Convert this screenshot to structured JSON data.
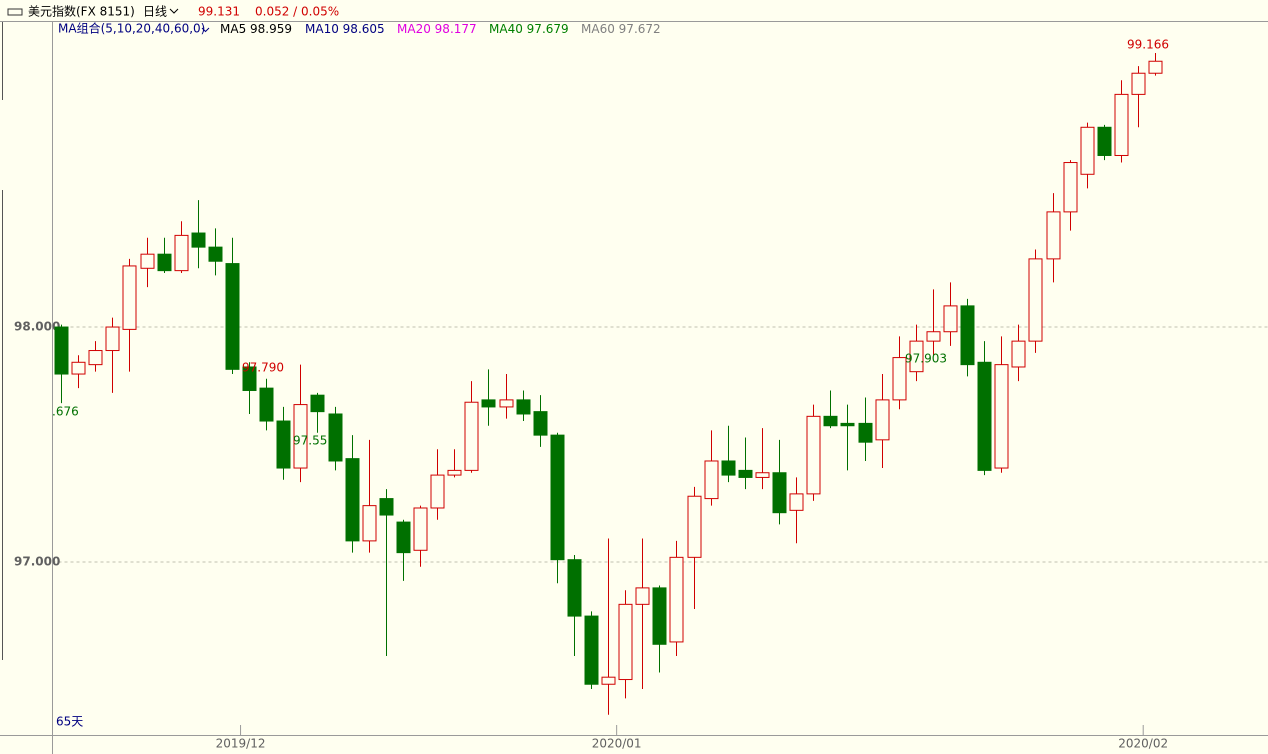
{
  "header": {
    "symbol": "美元指数(FX 8151)",
    "period": "日线",
    "price": 99.131,
    "change": "0.052 / 0.05%"
  },
  "chart_data": {
    "type": "candlestick",
    "ma_title": "MA组合(5,10,20,40,60,0)",
    "ma_legend": [
      {
        "name": "MA5",
        "value": 98.959,
        "color": "#000000"
      },
      {
        "name": "MA10",
        "value": 98.605,
        "color": "#000080"
      },
      {
        "name": "MA20",
        "value": 98.177,
        "color": "#e000e0"
      },
      {
        "name": "MA40",
        "value": 97.679,
        "color": "#008000"
      },
      {
        "name": "MA60",
        "value": 97.672,
        "color": "#808080"
      }
    ],
    "up_color": "#d00000",
    "down_color": "#007000",
    "open": [
      98.0,
      97.8,
      97.84,
      97.9,
      97.99,
      98.25,
      98.31,
      98.24,
      98.4,
      98.34,
      98.27,
      97.83,
      97.74,
      97.6,
      97.4,
      97.71,
      97.63,
      97.44,
      97.09,
      97.27,
      97.17,
      97.05,
      97.23,
      97.37,
      97.39,
      97.69,
      97.66,
      97.69,
      97.64,
      97.54,
      97.01,
      96.77,
      96.48,
      96.5,
      96.82,
      96.89,
      96.66,
      97.02,
      97.27,
      97.43,
      97.39,
      97.36,
      97.38,
      97.22,
      97.29,
      97.62,
      97.59,
      97.59,
      97.52,
      97.69,
      97.81,
      97.94,
      97.98,
      98.09,
      97.85,
      97.4,
      97.83,
      97.94,
      98.29,
      98.49,
      98.65,
      98.85,
      98.73,
      98.99,
      99.08
    ],
    "high": [
      98.01,
      97.88,
      97.94,
      98.04,
      98.29,
      98.38,
      98.38,
      98.45,
      98.54,
      98.42,
      98.38,
      97.85,
      97.78,
      97.66,
      97.84,
      97.72,
      97.66,
      97.54,
      97.52,
      97.31,
      97.18,
      97.24,
      97.48,
      97.48,
      97.77,
      97.82,
      97.8,
      97.73,
      97.71,
      97.55,
      97.03,
      96.79,
      97.1,
      96.88,
      97.1,
      96.9,
      97.09,
      97.32,
      97.56,
      97.58,
      97.53,
      97.57,
      97.52,
      97.36,
      97.67,
      97.73,
      97.67,
      97.7,
      97.8,
      97.96,
      98.01,
      98.16,
      98.19,
      98.12,
      97.94,
      97.96,
      98.01,
      98.33,
      98.57,
      98.71,
      98.87,
      98.86,
      99.05,
      99.11,
      99.166
    ],
    "low": [
      97.676,
      97.74,
      97.81,
      97.72,
      97.81,
      98.17,
      98.23,
      98.23,
      98.25,
      98.22,
      97.8,
      97.63,
      97.56,
      97.35,
      97.34,
      97.55,
      97.39,
      97.04,
      97.04,
      96.6,
      96.92,
      96.98,
      97.18,
      97.36,
      97.38,
      97.58,
      97.61,
      97.6,
      97.49,
      96.91,
      96.6,
      96.46,
      96.35,
      96.42,
      96.46,
      96.53,
      96.6,
      96.8,
      97.24,
      97.34,
      97.31,
      97.31,
      97.16,
      97.08,
      97.26,
      97.57,
      97.39,
      97.43,
      97.4,
      97.65,
      97.77,
      97.88,
      97.92,
      97.79,
      97.37,
      97.38,
      97.77,
      97.89,
      98.19,
      98.41,
      98.59,
      98.71,
      98.7,
      98.85,
      99.07
    ],
    "close": [
      97.8,
      97.85,
      97.9,
      98.0,
      98.26,
      98.31,
      98.24,
      98.39,
      98.34,
      98.28,
      97.82,
      97.73,
      97.6,
      97.4,
      97.67,
      97.64,
      97.43,
      97.09,
      97.24,
      97.2,
      97.04,
      97.23,
      97.37,
      97.39,
      97.68,
      97.66,
      97.69,
      97.63,
      97.54,
      97.01,
      96.77,
      96.48,
      96.51,
      96.82,
      96.89,
      96.65,
      97.02,
      97.28,
      97.43,
      97.37,
      97.36,
      97.38,
      97.21,
      97.29,
      97.62,
      97.58,
      97.58,
      97.51,
      97.69,
      97.87,
      97.94,
      97.98,
      98.09,
      97.84,
      97.39,
      97.84,
      97.94,
      98.29,
      98.49,
      98.7,
      98.85,
      98.73,
      98.99,
      99.08,
      99.131
    ],
    "annotations": [
      ".676",
      "97.790",
      "97.55",
      "97.903",
      "99.166"
    ],
    "ylim": [
      96.264,
      99.298
    ],
    "yticks": [
      {
        "value": 97,
        "label": "97.000"
      },
      {
        "value": 98,
        "label": "98.000"
      }
    ],
    "xlim": [
      -0.5,
      70.6
    ],
    "xticks": [
      {
        "value": 10.5,
        "label": "2019/12"
      },
      {
        "value": 32.5,
        "label": "2020/01"
      },
      {
        "value": 63.3,
        "label": "2020/02"
      }
    ],
    "grid": true,
    "period_label": "65天"
  }
}
